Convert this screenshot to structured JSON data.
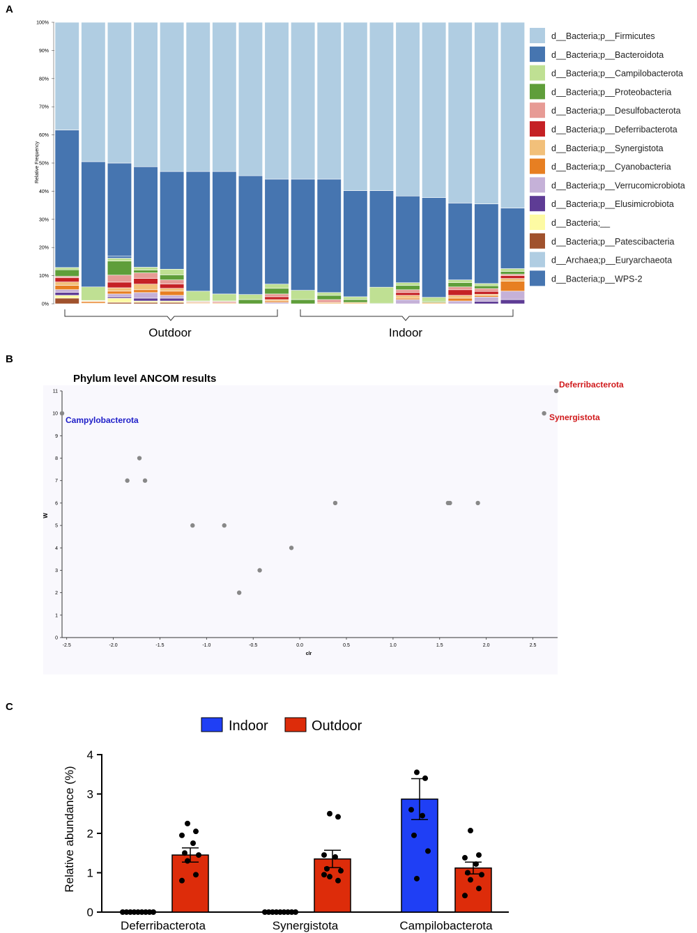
{
  "panel_labels": [
    "A",
    "B",
    "C"
  ],
  "chart_data": [
    {
      "type": "bar",
      "stacked": true,
      "ylabel": "Relative Frequency",
      "yticks": [
        "0%",
        "10%",
        "20%",
        "30%",
        "40%",
        "50%",
        "60%",
        "70%",
        "80%",
        "90%",
        "100%"
      ],
      "ylim": [
        0,
        100
      ],
      "groups": [
        {
          "label": "Outdoor",
          "samples": 9
        },
        {
          "label": "Indoor",
          "samples": 9
        }
      ],
      "legend": [
        {
          "label": "d__Bacteria;p__Firmicutes",
          "color": "#b0cde2"
        },
        {
          "label": "d__Bacteria;p__Bacteroidota",
          "color": "#4675b0"
        },
        {
          "label": "d__Bacteria;p__Campilobacterota",
          "color": "#bfe093"
        },
        {
          "label": "d__Bacteria;p__Proteobacteria",
          "color": "#5f9e3a"
        },
        {
          "label": "d__Bacteria;p__Desulfobacterota",
          "color": "#e79b95"
        },
        {
          "label": "d__Bacteria;p__Deferribacterota",
          "color": "#c52125"
        },
        {
          "label": "d__Bacteria;p__Synergistota",
          "color": "#f2c07a"
        },
        {
          "label": "d__Bacteria;p__Cyanobacteria",
          "color": "#e77f22"
        },
        {
          "label": "d__Bacteria;p__Verrucomicrobiota",
          "color": "#c5b1d8"
        },
        {
          "label": "d__Bacteria;p__Elusimicrobiota",
          "color": "#5e3c95"
        },
        {
          "label": "d__Bacteria;__",
          "color": "#fdfaa3"
        },
        {
          "label": "d__Bacteria;p__Patescibacteria",
          "color": "#a0522d"
        },
        {
          "label": "d__Archaea;p__Euryarchaeota",
          "color": "#b0cde2"
        },
        {
          "label": "d__Bacteria;p__WPS-2",
          "color": "#4675b0"
        }
      ],
      "samples": [
        {
          "Firmicutes": 38.0,
          "Bacteroidota": 48.5,
          "Campilobacterota": 0.8,
          "Proteobacteria": 2.3,
          "Desulfobacterota": 0.5,
          "Deferribacterota": 1.5,
          "Synergistota": 1.2,
          "Cyanobacteria": 1.5,
          "Verrucomicrobiota": 1.0,
          "Elusimicrobiota": 1.0,
          "Unassigned": 1.0,
          "Patescibacteria": 2.0
        },
        {
          "Firmicutes": 49.5,
          "Bacteroidota": 44.5,
          "Campilobacterota": 4.8,
          "Proteobacteria": 0.1,
          "Desulfobacterota": 0.1,
          "Deferribacterota": 0.0,
          "Synergistota": 0.3,
          "Cyanobacteria": 0.5,
          "Verrucomicrobiota": 0.1,
          "Elusimicrobiota": 0.0,
          "Unassigned": 0.1,
          "Patescibacteria": 0.0
        },
        {
          "Firmicutes": 50.0,
          "Bacteroidota": 33.0,
          "Campilobacterota": 1.0,
          "Proteobacteria": 5.0,
          "Desulfobacterota": 2.5,
          "Deferribacterota": 2.0,
          "Synergistota": 1.2,
          "Cyanobacteria": 1.0,
          "Verrucomicrobiota": 1.0,
          "Elusimicrobiota": 0.5,
          "Unassigned": 1.5,
          "Patescibacteria": 0.5,
          "WPS-2": 0.8
        },
        {
          "Firmicutes": 51.3,
          "Bacteroidota": 35.7,
          "Campilobacterota": 1.0,
          "Proteobacteria": 1.0,
          "Desulfobacterota": 2.0,
          "Deferribacterota": 2.0,
          "Synergistota": 2.0,
          "Cyanobacteria": 1.0,
          "Verrucomicrobiota": 2.0,
          "Elusimicrobiota": 1.0,
          "Unassigned": 0.5,
          "Patescibacteria": 0.5
        },
        {
          "Firmicutes": 53.0,
          "Bacteroidota": 34.7,
          "Campilobacterota": 2.0,
          "Proteobacteria": 1.8,
          "Desulfobacterota": 1.5,
          "Deferribacterota": 1.5,
          "Synergistota": 1.0,
          "Cyanobacteria": 1.5,
          "Verrucomicrobiota": 1.0,
          "Elusimicrobiota": 1.0,
          "Unassigned": 0.5,
          "Patescibacteria": 0.5
        },
        {
          "Firmicutes": 53.0,
          "Bacteroidota": 42.5,
          "Campilobacterota": 3.5,
          "Proteobacteria": 0.2,
          "Desulfobacterota": 0.3,
          "Deferribacterota": 0.0,
          "Synergistota": 0.3,
          "Cyanobacteria": 0.2
        },
        {
          "Firmicutes": 53.0,
          "Bacteroidota": 43.5,
          "Campilobacterota": 2.5,
          "Proteobacteria": 0.2,
          "Desulfobacterota": 0.5,
          "Deferribacterota": 0.0,
          "Synergistota": 0.3
        },
        {
          "Firmicutes": 54.5,
          "Bacteroidota": 42.2,
          "Campilobacterota": 1.8,
          "Proteobacteria": 1.5
        },
        {
          "Firmicutes": 55.7,
          "Bacteroidota": 37.3,
          "Campilobacterota": 1.5,
          "Proteobacteria": 2.0,
          "Desulfobacterota": 1.0,
          "Deferribacterota": 1.0,
          "Synergistota": 0.5,
          "Cyanobacteria": 0.5,
          "Verrucomicrobiota": 0.5
        },
        {
          "Firmicutes": 55.7,
          "Bacteroidota": 39.5,
          "Campilobacterota": 3.3,
          "Proteobacteria": 1.5
        },
        {
          "Firmicutes": 55.7,
          "Bacteroidota": 40.3,
          "Campilobacterota": 1.0,
          "Proteobacteria": 1.5,
          "Desulfobacterota": 1.0,
          "Synergistota": 0.5
        },
        {
          "Firmicutes": 59.8,
          "Bacteroidota": 37.7,
          "Campilobacterota": 1.0,
          "Proteobacteria": 1.0,
          "Synergistota": 0.5
        },
        {
          "Firmicutes": 59.8,
          "Bacteroidota": 34.3,
          "Campilobacterota": 5.7,
          "Proteobacteria": 0.2
        },
        {
          "Firmicutes": 61.7,
          "Bacteroidota": 30.8,
          "Campilobacterota": 1.0,
          "Proteobacteria": 1.5,
          "Desulfobacterota": 1.0,
          "Deferribacterota": 1.0,
          "Synergistota": 1.0,
          "Cyanobacteria": 0.5,
          "Verrucomicrobiota": 1.5
        },
        {
          "Firmicutes": 62.3,
          "Bacteroidota": 35.4,
          "Campilobacterota": 1.5,
          "Proteobacteria": 0.3,
          "Synergistota": 0.5
        },
        {
          "Firmicutes": 64.2,
          "Bacteroidota": 27.3,
          "Campilobacterota": 1.0,
          "Proteobacteria": 1.5,
          "Desulfobacterota": 1.0,
          "Deferribacterota": 2.0,
          "Synergistota": 1.0,
          "Cyanobacteria": 1.0,
          "Verrucomicrobiota": 1.0
        },
        {
          "Firmicutes": 64.5,
          "Bacteroidota": 28.3,
          "Campilobacterota": 0.8,
          "Proteobacteria": 1.0,
          "Desulfobacterota": 1.0,
          "Deferribacterota": 1.0,
          "Synergistota": 0.5,
          "Cyanobacteria": 0.5,
          "Verrucomicrobiota": 1.5,
          "Elusimicrobiota": 0.9
        },
        {
          "Firmicutes": 66.0,
          "Bacteroidota": 21.5,
          "Campilobacterota": 1.0,
          "Proteobacteria": 1.0,
          "Desulfobacterota": 0.5,
          "Deferribacterota": 1.0,
          "Synergistota": 1.0,
          "Cyanobacteria": 3.5,
          "Verrucomicrobiota": 3.0,
          "Elusimicrobiota": 1.5
        }
      ]
    },
    {
      "type": "scatter",
      "title": "Phylum level ANCOM results",
      "xlabel": "clr",
      "ylabel": "W",
      "xlim": [
        -2.55,
        2.75
      ],
      "ylim": [
        0,
        11
      ],
      "xticks": [
        "-2.5",
        "-2.0",
        "-1.5",
        "-1.0",
        "-0.5",
        "0.0",
        "0.5",
        "1.0",
        "1.5",
        "2.0",
        "2.5"
      ],
      "yticks": [
        "0",
        "1",
        "2",
        "3",
        "4",
        "5",
        "6",
        "7",
        "8",
        "9",
        "10",
        "11"
      ],
      "points": [
        {
          "x": -2.55,
          "y": 10
        },
        {
          "x": -1.85,
          "y": 7
        },
        {
          "x": -1.72,
          "y": 8
        },
        {
          "x": -1.66,
          "y": 7
        },
        {
          "x": -1.15,
          "y": 5
        },
        {
          "x": -0.81,
          "y": 5
        },
        {
          "x": -0.65,
          "y": 2
        },
        {
          "x": -0.43,
          "y": 3
        },
        {
          "x": -0.09,
          "y": 4
        },
        {
          "x": 0.38,
          "y": 6
        },
        {
          "x": 1.59,
          "y": 6
        },
        {
          "x": 1.61,
          "y": 6
        },
        {
          "x": 1.91,
          "y": 6
        },
        {
          "x": 2.62,
          "y": 10
        },
        {
          "x": 2.75,
          "y": 11
        }
      ],
      "annotations": [
        {
          "text": "Campylobacterota",
          "color": "#1e1ec8"
        },
        {
          "text": "Deferribacterota",
          "color": "#d0191b"
        },
        {
          "text": "Synergistota",
          "color": "#d0191b"
        }
      ]
    },
    {
      "type": "bar",
      "ylabel": "Relative abundance (%)",
      "ylim": [
        0,
        4
      ],
      "yticks": [
        "0",
        "1",
        "2",
        "3",
        "4"
      ],
      "categories": [
        "Deferribacterota",
        "Synergistota",
        "Campilobacterota"
      ],
      "series": [
        {
          "name": "Indoor",
          "color": "#1f3ff5",
          "values": [
            0,
            0,
            2.87
          ],
          "sem": [
            0,
            0,
            0.52
          ],
          "points": [
            [
              0,
              0,
              0,
              0,
              0,
              0,
              0,
              0,
              0
            ],
            [
              0,
              0,
              0,
              0,
              0,
              0,
              0,
              0,
              0
            ],
            [
              3.55,
              3.4,
              2.6,
              2.45,
              1.95,
              1.55,
              0.85
            ]
          ]
        },
        {
          "name": "Outdoor",
          "color": "#dd2c0a",
          "values": [
            1.45,
            1.35,
            1.12
          ],
          "sem": [
            0.18,
            0.22,
            0.15
          ],
          "points": [
            [
              2.25,
              2.05,
              1.95,
              1.75,
              1.5,
              1.45,
              1.3,
              0.95,
              0.8
            ],
            [
              2.5,
              2.42,
              1.45,
              1.4,
              1.1,
              1.05,
              0.9,
              0.8,
              0.95
            ],
            [
              2.07,
              1.45,
              1.38,
              1.22,
              1.0,
              0.95,
              0.82,
              0.6,
              0.42
            ]
          ]
        }
      ]
    }
  ]
}
